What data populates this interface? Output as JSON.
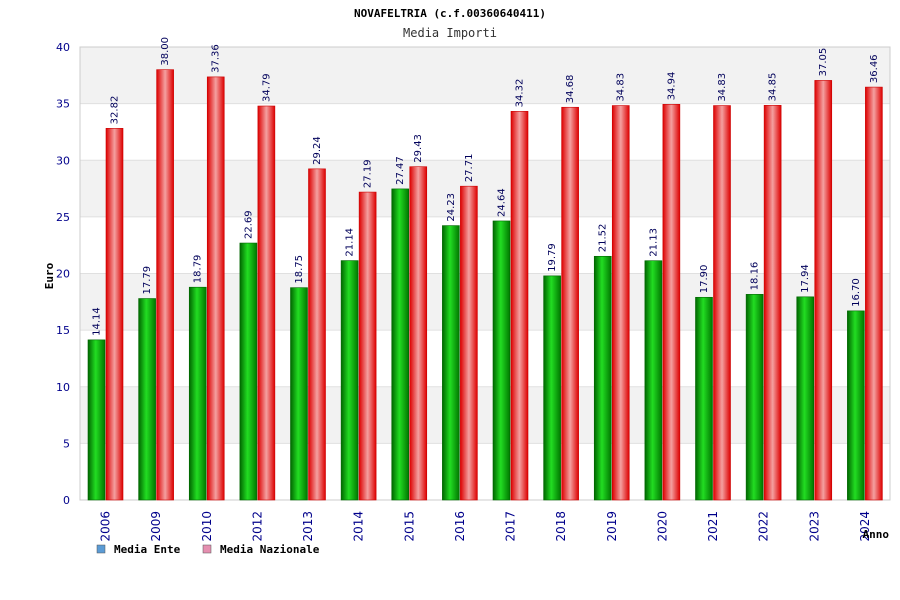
{
  "chart_data": {
    "type": "bar",
    "title": "NOVAFELTRIA (c.f.00360640411)",
    "subtitle": "Media Importi",
    "xlabel": "Anno",
    "ylabel": "Euro",
    "ylim": [
      0,
      40
    ],
    "yticks": [
      0,
      5,
      10,
      15,
      20,
      25,
      30,
      35,
      40
    ],
    "grid": true,
    "legend_position": "bottom-left",
    "categories": [
      "2006",
      "2009",
      "2010",
      "2012",
      "2013",
      "2014",
      "2015",
      "2016",
      "2017",
      "2018",
      "2019",
      "2020",
      "2021",
      "2022",
      "2023",
      "2024"
    ],
    "series": [
      {
        "name": "Media Ente",
        "legend_color": "#5b9bd5",
        "bar_color": "#00aa00",
        "values": [
          14.14,
          17.79,
          18.79,
          22.69,
          18.75,
          21.14,
          27.47,
          24.23,
          24.64,
          19.79,
          21.52,
          21.13,
          17.9,
          18.16,
          17.94,
          16.7
        ],
        "value_labels": [
          "14.14",
          "17.79",
          "18.79",
          "22.69",
          "18.75",
          "21.14",
          "27.47",
          "24.23",
          "24.64",
          "19.79",
          "21.52",
          "21.13",
          "17.90",
          "18.16",
          "17.94",
          "16.70"
        ]
      },
      {
        "name": "Media Nazionale",
        "legend_color": "#e58fb0",
        "bar_color": "#ee1111",
        "values": [
          32.82,
          38.0,
          37.36,
          34.79,
          29.24,
          27.19,
          29.43,
          27.71,
          34.32,
          34.68,
          34.83,
          34.94,
          34.83,
          34.85,
          37.05,
          36.46
        ],
        "value_labels": [
          "32.82",
          "38.00",
          "37.36",
          "34.79",
          "29.24",
          "27.19",
          "29.43",
          "27.71",
          "34.32",
          "34.68",
          "34.83",
          "34.94",
          "34.83",
          "34.85",
          "37.05",
          "36.46"
        ]
      }
    ]
  }
}
